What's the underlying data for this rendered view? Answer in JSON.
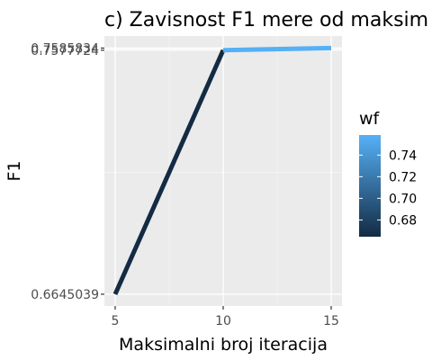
{
  "chart_data": {
    "type": "line",
    "title": "c) Zavisnost F1 mere od maksim",
    "xlabel": "Maksimalni broj iteracija",
    "ylabel": "F1",
    "x": [
      5,
      10,
      15
    ],
    "y": [
      0.6645039,
      0.7577724,
      0.7585834
    ],
    "color_values": [
      0.6645039,
      0.7577724,
      0.7585834
    ],
    "xlim": [
      4.5,
      15.5
    ],
    "ylim": [
      0.66,
      0.7632
    ],
    "x_ticks": [
      5,
      10,
      15
    ],
    "x_tick_labels": [
      "5",
      "10",
      "15"
    ],
    "y_ticks": [
      0.6645039,
      0.7577724,
      0.7585834
    ],
    "y_tick_labels": [
      "0.6645039",
      "0.7577724",
      "0.7585834"
    ],
    "grid": true,
    "panel_background": "#ebebeb",
    "legend": {
      "title": "wf",
      "position": "right",
      "type": "colorbar",
      "ticks": [
        0.68,
        0.7,
        0.72,
        0.74
      ],
      "tick_labels": [
        "0.68",
        "0.70",
        "0.72",
        "0.74"
      ],
      "range": [
        0.6645039,
        0.7585834
      ],
      "low_color": "#132b43",
      "high_color": "#56b1f7"
    }
  }
}
